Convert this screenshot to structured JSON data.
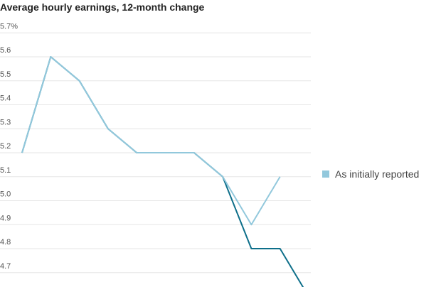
{
  "chart_data": {
    "type": "line",
    "title": "Average hourly earnings, 12-month change",
    "categories": [
      null,
      null,
      null,
      null,
      null,
      null,
      null,
      null,
      null,
      null,
      null
    ],
    "series": [
      {
        "color": "#0e6f8a",
        "values": [
          5.2,
          5.6,
          5.5,
          5.3,
          5.2,
          5.2,
          5.2,
          5.1,
          4.8,
          4.8,
          4.6
        ]
      },
      {
        "name": "As initially reported",
        "color": "#92c8dc",
        "values": [
          5.2,
          5.6,
          5.5,
          5.3,
          5.2,
          5.2,
          5.2,
          5.1,
          4.9,
          5.1,
          null
        ]
      }
    ],
    "ylim": [
      4.64,
      5.76
    ],
    "yticks": [
      {
        "value": 5.7,
        "label": "5.7%"
      },
      5.6,
      5.5,
      5.4,
      5.3,
      5.2,
      5.1,
      {
        "value": 5,
        "label": "5.0"
      },
      4.9,
      4.8,
      4.7
    ],
    "grid": true,
    "legend": "right"
  }
}
